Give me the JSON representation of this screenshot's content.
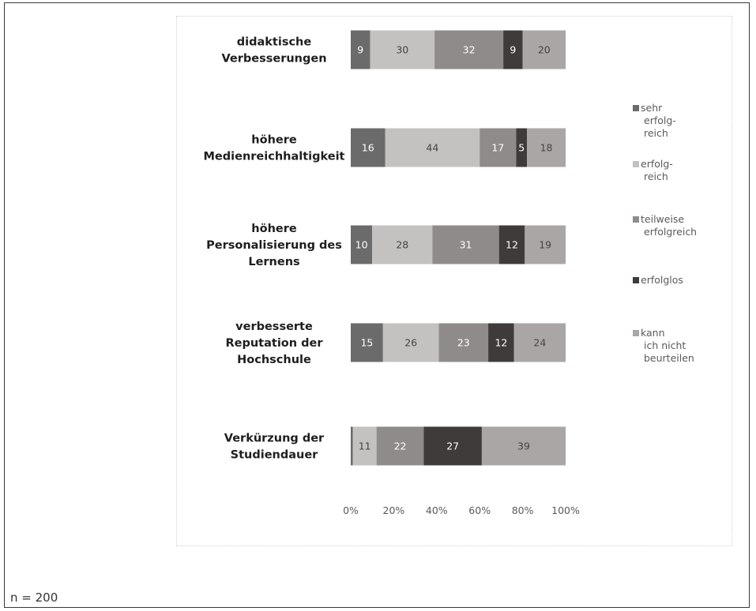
{
  "note": "n = 200",
  "chart_data": {
    "type": "bar",
    "orientation": "horizontal",
    "stacked": "percent",
    "categories": [
      [
        "didaktische",
        "Verbesserungen"
      ],
      [
        "höhere",
        "Medienreichhaltigkeit"
      ],
      [
        "höhere",
        "Personalisierung des",
        "Lernens"
      ],
      [
        "verbesserte",
        "Reputation der",
        "Hochschule"
      ],
      [
        "Verkürzung der",
        "Studiendauer"
      ]
    ],
    "series": [
      {
        "name": [
          "sehr",
          "erfolg-",
          "reich"
        ],
        "color": "#6b6b6b",
        "label_color": "#ffffff",
        "values": [
          9,
          16,
          10,
          15,
          1
        ]
      },
      {
        "name": [
          "erfolg-",
          "reich"
        ],
        "color": "#c4c1c1",
        "label_color": "#444444",
        "values": [
          30,
          44,
          28,
          26,
          11
        ]
      },
      {
        "name": [
          "teilweise",
          "erfolgreich"
        ],
        "color": "#908b8b",
        "label_color": "#ffffff",
        "values": [
          32,
          17,
          31,
          23,
          22
        ]
      },
      {
        "name": [
          "erfolglos"
        ],
        "color": "#3f3b3b",
        "label_color": "#ffffff",
        "values": [
          9,
          5,
          12,
          12,
          27
        ]
      },
      {
        "name": [
          "kann",
          "ich nicht",
          "beurteilen"
        ],
        "color": "#aaa6a6",
        "label_color": "#444444",
        "values": [
          20,
          18,
          19,
          24,
          39
        ]
      }
    ],
    "data_labels": [
      [
        "9",
        "30",
        "32",
        "9",
        "20"
      ],
      [
        "16",
        "44",
        "17",
        "5",
        "18"
      ],
      [
        "10",
        "28",
        "31",
        "12",
        "19"
      ],
      [
        "15",
        "26",
        "23",
        "12",
        "24"
      ],
      [
        "",
        "11",
        "22",
        "27",
        "39"
      ]
    ],
    "x_ticks": [
      "0%",
      "20%",
      "40%",
      "60%",
      "80%",
      "100%"
    ],
    "xlim": [
      0,
      100
    ],
    "legend_position": "right",
    "grid": false
  }
}
